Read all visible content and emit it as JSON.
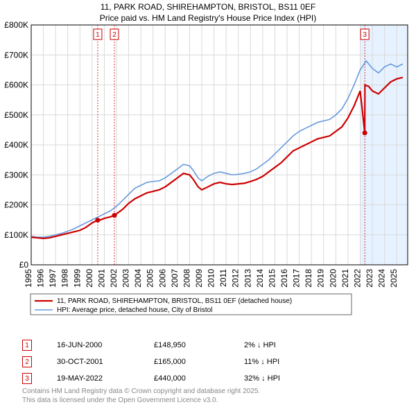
{
  "title_line1": "11, PARK ROAD, SHIREHAMPTON, BRISTOL, BS11 0EF",
  "title_line2": "Price paid vs. HM Land Registry's House Price Index (HPI)",
  "chart": {
    "type": "line",
    "background_color": "#ffffff",
    "grid_color": "#d9d9d9",
    "x": {
      "min": 1995,
      "max": 2025.9,
      "ticks": [
        1995,
        1996,
        1997,
        1998,
        1999,
        2000,
        2001,
        2002,
        2003,
        2004,
        2005,
        2006,
        2007,
        2008,
        2009,
        2010,
        2011,
        2012,
        2013,
        2014,
        2015,
        2016,
        2017,
        2018,
        2019,
        2020,
        2021,
        2022,
        2023,
        2024,
        2025
      ],
      "rotate": -90,
      "fontsize": 12
    },
    "y": {
      "min": 0,
      "max": 800000,
      "ticks": [
        0,
        100000,
        200000,
        300000,
        400000,
        500000,
        600000,
        700000,
        800000
      ],
      "tick_labels": [
        "£0",
        "£100K",
        "£200K",
        "£300K",
        "£400K",
        "£500K",
        "£600K",
        "£700K",
        "£800K"
      ],
      "fontsize": 12
    },
    "series": [
      {
        "name": "price_paid",
        "color": "#cc0000",
        "width": 2.2,
        "data": [
          [
            1995,
            92000
          ],
          [
            1995.5,
            90000
          ],
          [
            1996,
            88000
          ],
          [
            1996.5,
            90000
          ],
          [
            1997,
            95000
          ],
          [
            1997.5,
            100000
          ],
          [
            1998,
            105000
          ],
          [
            1998.5,
            110000
          ],
          [
            1999,
            115000
          ],
          [
            1999.5,
            125000
          ],
          [
            2000,
            140000
          ],
          [
            2000.46,
            148950
          ],
          [
            2000.7,
            150000
          ],
          [
            2001,
            155000
          ],
          [
            2001.5,
            160000
          ],
          [
            2001.83,
            165000
          ],
          [
            2002,
            170000
          ],
          [
            2002.5,
            185000
          ],
          [
            2003,
            205000
          ],
          [
            2003.5,
            220000
          ],
          [
            2004,
            230000
          ],
          [
            2004.5,
            240000
          ],
          [
            2005,
            245000
          ],
          [
            2005.5,
            250000
          ],
          [
            2006,
            260000
          ],
          [
            2006.5,
            275000
          ],
          [
            2007,
            290000
          ],
          [
            2007.5,
            305000
          ],
          [
            2008,
            300000
          ],
          [
            2008.3,
            285000
          ],
          [
            2008.7,
            260000
          ],
          [
            2009,
            250000
          ],
          [
            2009.5,
            260000
          ],
          [
            2010,
            270000
          ],
          [
            2010.5,
            275000
          ],
          [
            2011,
            270000
          ],
          [
            2011.5,
            268000
          ],
          [
            2012,
            270000
          ],
          [
            2012.5,
            272000
          ],
          [
            2013,
            278000
          ],
          [
            2013.5,
            285000
          ],
          [
            2014,
            295000
          ],
          [
            2014.5,
            310000
          ],
          [
            2015,
            325000
          ],
          [
            2015.5,
            340000
          ],
          [
            2016,
            360000
          ],
          [
            2016.5,
            380000
          ],
          [
            2017,
            390000
          ],
          [
            2017.5,
            400000
          ],
          [
            2018,
            410000
          ],
          [
            2018.5,
            420000
          ],
          [
            2019,
            425000
          ],
          [
            2019.5,
            430000
          ],
          [
            2020,
            445000
          ],
          [
            2020.5,
            460000
          ],
          [
            2021,
            490000
          ],
          [
            2021.5,
            530000
          ],
          [
            2022,
            580000
          ],
          [
            2022.38,
            440000
          ],
          [
            2022.39,
            600000
          ],
          [
            2022.7,
            595000
          ],
          [
            2023,
            580000
          ],
          [
            2023.5,
            570000
          ],
          [
            2024,
            590000
          ],
          [
            2024.5,
            610000
          ],
          [
            2025,
            620000
          ],
          [
            2025.5,
            625000
          ]
        ]
      },
      {
        "name": "hpi",
        "color": "#6699dd",
        "width": 1.6,
        "data": [
          [
            1995,
            95000
          ],
          [
            1995.5,
            92000
          ],
          [
            1996,
            92000
          ],
          [
            1996.5,
            95000
          ],
          [
            1997,
            100000
          ],
          [
            1997.5,
            105000
          ],
          [
            1998,
            112000
          ],
          [
            1998.5,
            120000
          ],
          [
            1999,
            130000
          ],
          [
            1999.5,
            140000
          ],
          [
            2000,
            150000
          ],
          [
            2000.5,
            160000
          ],
          [
            2001,
            170000
          ],
          [
            2001.5,
            180000
          ],
          [
            2002,
            195000
          ],
          [
            2002.5,
            215000
          ],
          [
            2003,
            235000
          ],
          [
            2003.5,
            255000
          ],
          [
            2004,
            265000
          ],
          [
            2004.5,
            275000
          ],
          [
            2005,
            278000
          ],
          [
            2005.5,
            280000
          ],
          [
            2006,
            290000
          ],
          [
            2006.5,
            305000
          ],
          [
            2007,
            320000
          ],
          [
            2007.5,
            335000
          ],
          [
            2008,
            330000
          ],
          [
            2008.3,
            315000
          ],
          [
            2008.7,
            290000
          ],
          [
            2009,
            280000
          ],
          [
            2009.5,
            295000
          ],
          [
            2010,
            305000
          ],
          [
            2010.5,
            310000
          ],
          [
            2011,
            305000
          ],
          [
            2011.5,
            300000
          ],
          [
            2012,
            302000
          ],
          [
            2012.5,
            305000
          ],
          [
            2013,
            310000
          ],
          [
            2013.5,
            320000
          ],
          [
            2014,
            335000
          ],
          [
            2014.5,
            350000
          ],
          [
            2015,
            370000
          ],
          [
            2015.5,
            390000
          ],
          [
            2016,
            410000
          ],
          [
            2016.5,
            430000
          ],
          [
            2017,
            445000
          ],
          [
            2017.5,
            455000
          ],
          [
            2018,
            465000
          ],
          [
            2018.5,
            475000
          ],
          [
            2019,
            480000
          ],
          [
            2019.5,
            485000
          ],
          [
            2020,
            500000
          ],
          [
            2020.5,
            520000
          ],
          [
            2021,
            555000
          ],
          [
            2021.5,
            600000
          ],
          [
            2022,
            650000
          ],
          [
            2022.5,
            680000
          ],
          [
            2023,
            655000
          ],
          [
            2023.5,
            640000
          ],
          [
            2024,
            660000
          ],
          [
            2024.5,
            670000
          ],
          [
            2025,
            660000
          ],
          [
            2025.5,
            670000
          ]
        ]
      }
    ],
    "markers": [
      {
        "n": "1",
        "x": 2000.46,
        "y": 148950
      },
      {
        "n": "2",
        "x": 2001.83,
        "y": 165000
      },
      {
        "n": "3",
        "x": 2022.38,
        "y": 440000
      }
    ],
    "marker_line_color": "#cc0000",
    "highlight_band": {
      "from": 2022.0,
      "to": 2025.9,
      "color": "#e6f2ff"
    },
    "sale_dots": {
      "color": "#cc0000",
      "radius": 3.5
    }
  },
  "legend": {
    "items": [
      {
        "color": "#cc0000",
        "width": 2.2,
        "label": "11, PARK ROAD, SHIREHAMPTON, BRISTOL, BS11 0EF (detached house)"
      },
      {
        "color": "#6699dd",
        "width": 1.6,
        "label": "HPI: Average price, detached house, City of Bristol"
      }
    ]
  },
  "transactions": [
    {
      "n": "1",
      "date": "16-JUN-2000",
      "price": "£148,950",
      "diff": "2% ↓ HPI"
    },
    {
      "n": "2",
      "date": "30-OCT-2001",
      "price": "£165,000",
      "diff": "11% ↓ HPI"
    },
    {
      "n": "3",
      "date": "19-MAY-2022",
      "price": "£440,000",
      "diff": "32% ↓ HPI"
    }
  ],
  "footer_line1": "Contains HM Land Registry data © Crown copyright and database right 2025.",
  "footer_line2": "This data is licensed under the Open Government Licence v3.0."
}
